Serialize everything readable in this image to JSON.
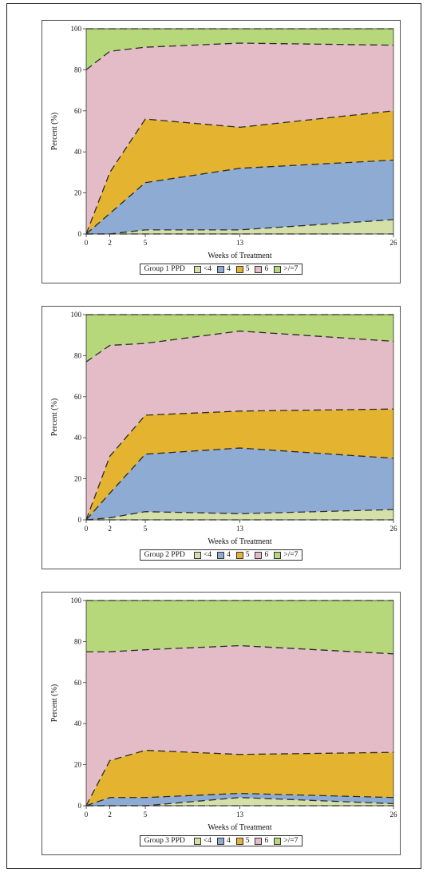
{
  "chart_data": [
    {
      "type": "area",
      "xlabel": "Weeks of Treatment",
      "ylabel": "Percent (%)",
      "ylim": [
        0,
        100
      ],
      "x_ticks": [
        0,
        2,
        5,
        13,
        26
      ],
      "y_ticks": [
        0,
        20,
        40,
        60,
        80,
        100
      ],
      "legend_title": "Group 1 PPD",
      "boundaries": [
        0,
        2,
        5,
        13,
        26
      ],
      "series": [
        {
          "name": "<4",
          "values": [
            0,
            0,
            2,
            2,
            7
          ]
        },
        {
          "name": "4",
          "values": [
            0,
            10,
            23,
            30,
            29
          ]
        },
        {
          "name": "5",
          "values": [
            0,
            20,
            31,
            20,
            24
          ]
        },
        {
          "name": "6",
          "values": [
            80,
            59,
            35,
            41,
            32
          ]
        },
        {
          "name": ">/=7",
          "values": [
            20,
            11,
            9,
            7,
            8
          ]
        }
      ]
    },
    {
      "type": "area",
      "xlabel": "Weeks of Treatment",
      "ylabel": "Percent (%)",
      "ylim": [
        0,
        100
      ],
      "x_ticks": [
        0,
        2,
        5,
        13,
        26
      ],
      "y_ticks": [
        0,
        20,
        40,
        60,
        80,
        100
      ],
      "legend_title": "Group 2 PPD",
      "series": [
        {
          "name": "<4",
          "values": [
            0,
            1,
            4,
            3,
            5
          ]
        },
        {
          "name": "4",
          "values": [
            0,
            12,
            28,
            32,
            25
          ]
        },
        {
          "name": "5",
          "values": [
            0,
            18,
            19,
            18,
            24
          ]
        },
        {
          "name": "6",
          "values": [
            77,
            54,
            35,
            39,
            33
          ]
        },
        {
          "name": ">/=7",
          "values": [
            23,
            15,
            14,
            8,
            13
          ]
        }
      ]
    },
    {
      "type": "area",
      "xlabel": "Weeks of Treatment",
      "ylabel": "Percent (%)",
      "ylim": [
        0,
        100
      ],
      "x_ticks": [
        0,
        2,
        5,
        13,
        26
      ],
      "y_ticks": [
        0,
        20,
        40,
        60,
        80,
        100
      ],
      "legend_title": "Group 3 PPD",
      "series": [
        {
          "name": "<4",
          "values": [
            0,
            0,
            0,
            4,
            1
          ]
        },
        {
          "name": "4",
          "values": [
            0,
            4,
            4,
            2,
            3
          ]
        },
        {
          "name": "5",
          "values": [
            0,
            18,
            23,
            19,
            22
          ]
        },
        {
          "name": "6",
          "values": [
            75,
            53,
            49,
            53,
            48
          ]
        },
        {
          "name": ">/=7",
          "values": [
            25,
            25,
            24,
            22,
            26
          ]
        }
      ]
    }
  ],
  "colors": {
    "lt4": "#d5e0a8",
    "c4": "#8eabd4",
    "c5": "#e4b32f",
    "c6": "#e4bcc7",
    "ge7": "#b6d77a"
  }
}
